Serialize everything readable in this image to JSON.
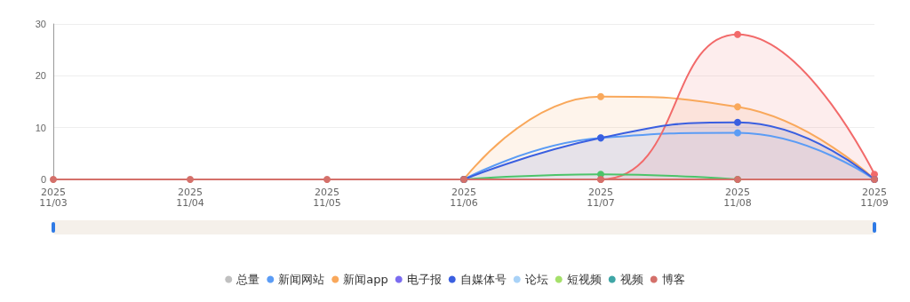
{
  "chart_data": {
    "type": "line",
    "categories": [
      "2025\n11/03",
      "2025\n11/04",
      "2025\n11/05",
      "2025\n11/06",
      "2025\n11/07",
      "2025\n11/08",
      "2025\n11/09"
    ],
    "ylim": [
      0,
      30
    ],
    "yticks": [
      0,
      10,
      20,
      30
    ],
    "grid": "y",
    "legend": "bottom",
    "marker": "circle",
    "series": [
      {
        "name": "总量",
        "color": "#c0c0c0",
        "values": [
          null,
          null,
          null,
          null,
          null,
          null,
          null
        ]
      },
      {
        "name": "新闻网站",
        "color": "#5b9cf5",
        "values": [
          null,
          null,
          null,
          0,
          8,
          9,
          0
        ]
      },
      {
        "name": "新闻app",
        "color": "#f9a85b",
        "type": "area",
        "values": [
          null,
          null,
          null,
          0,
          16,
          14,
          0
        ]
      },
      {
        "name": "电子报",
        "color": "#7b6cf0",
        "values": [
          null,
          null,
          null,
          null,
          null,
          null,
          null
        ]
      },
      {
        "color": "#f26a6a",
        "type": "area",
        "values": [
          null,
          null,
          null,
          0,
          0,
          28,
          1
        ]
      },
      {
        "color": "#4cc46a",
        "values": [
          null,
          null,
          null,
          0,
          1,
          0,
          null
        ]
      },
      {
        "name": "自媒体号",
        "color": "#3a5fe0",
        "type": "area",
        "values": [
          null,
          null,
          null,
          0,
          8,
          11,
          0
        ]
      },
      {
        "name": "论坛",
        "color": "#a9d2f7",
        "values": [
          null,
          null,
          null,
          null,
          null,
          null,
          null
        ]
      },
      {
        "name": "短视频",
        "color": "#a5e06a",
        "values": [
          null,
          null,
          null,
          null,
          null,
          null,
          null
        ]
      },
      {
        "name": "视频",
        "color": "#3fa6a6",
        "values": [
          null,
          null,
          null,
          null,
          null,
          null,
          null
        ]
      },
      {
        "name": "博客",
        "color": "#d4706a",
        "values": [
          0,
          0,
          0,
          0,
          0,
          0,
          0
        ]
      }
    ]
  }
}
